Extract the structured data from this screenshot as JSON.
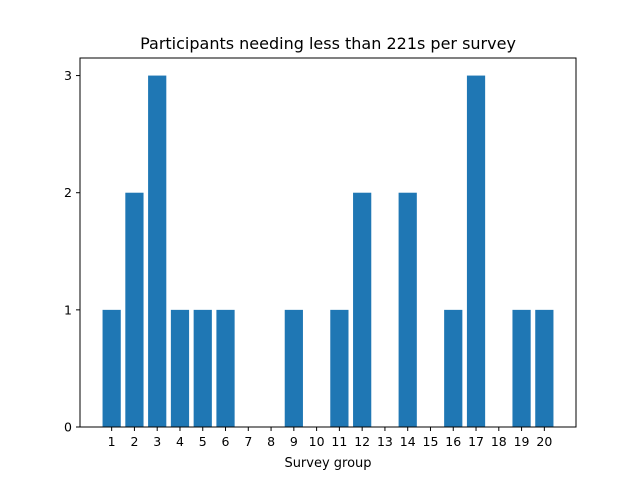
{
  "chart_data": {
    "type": "bar",
    "title": "Participants needing less than 221s per survey",
    "xlabel": "Survey group",
    "ylabel": "",
    "categories": [
      "1",
      "2",
      "3",
      "4",
      "5",
      "6",
      "7",
      "8",
      "9",
      "10",
      "11",
      "12",
      "13",
      "14",
      "15",
      "16",
      "17",
      "18",
      "19",
      "20"
    ],
    "values": [
      1,
      2,
      3,
      1,
      1,
      1,
      0,
      0,
      1,
      0,
      1,
      2,
      0,
      2,
      0,
      1,
      3,
      0,
      1,
      1
    ],
    "ylim": [
      0,
      3.15
    ],
    "yticks": [
      0,
      1,
      2,
      3
    ],
    "bar_color": "#1f77b4",
    "grid": false,
    "legend": "none"
  }
}
